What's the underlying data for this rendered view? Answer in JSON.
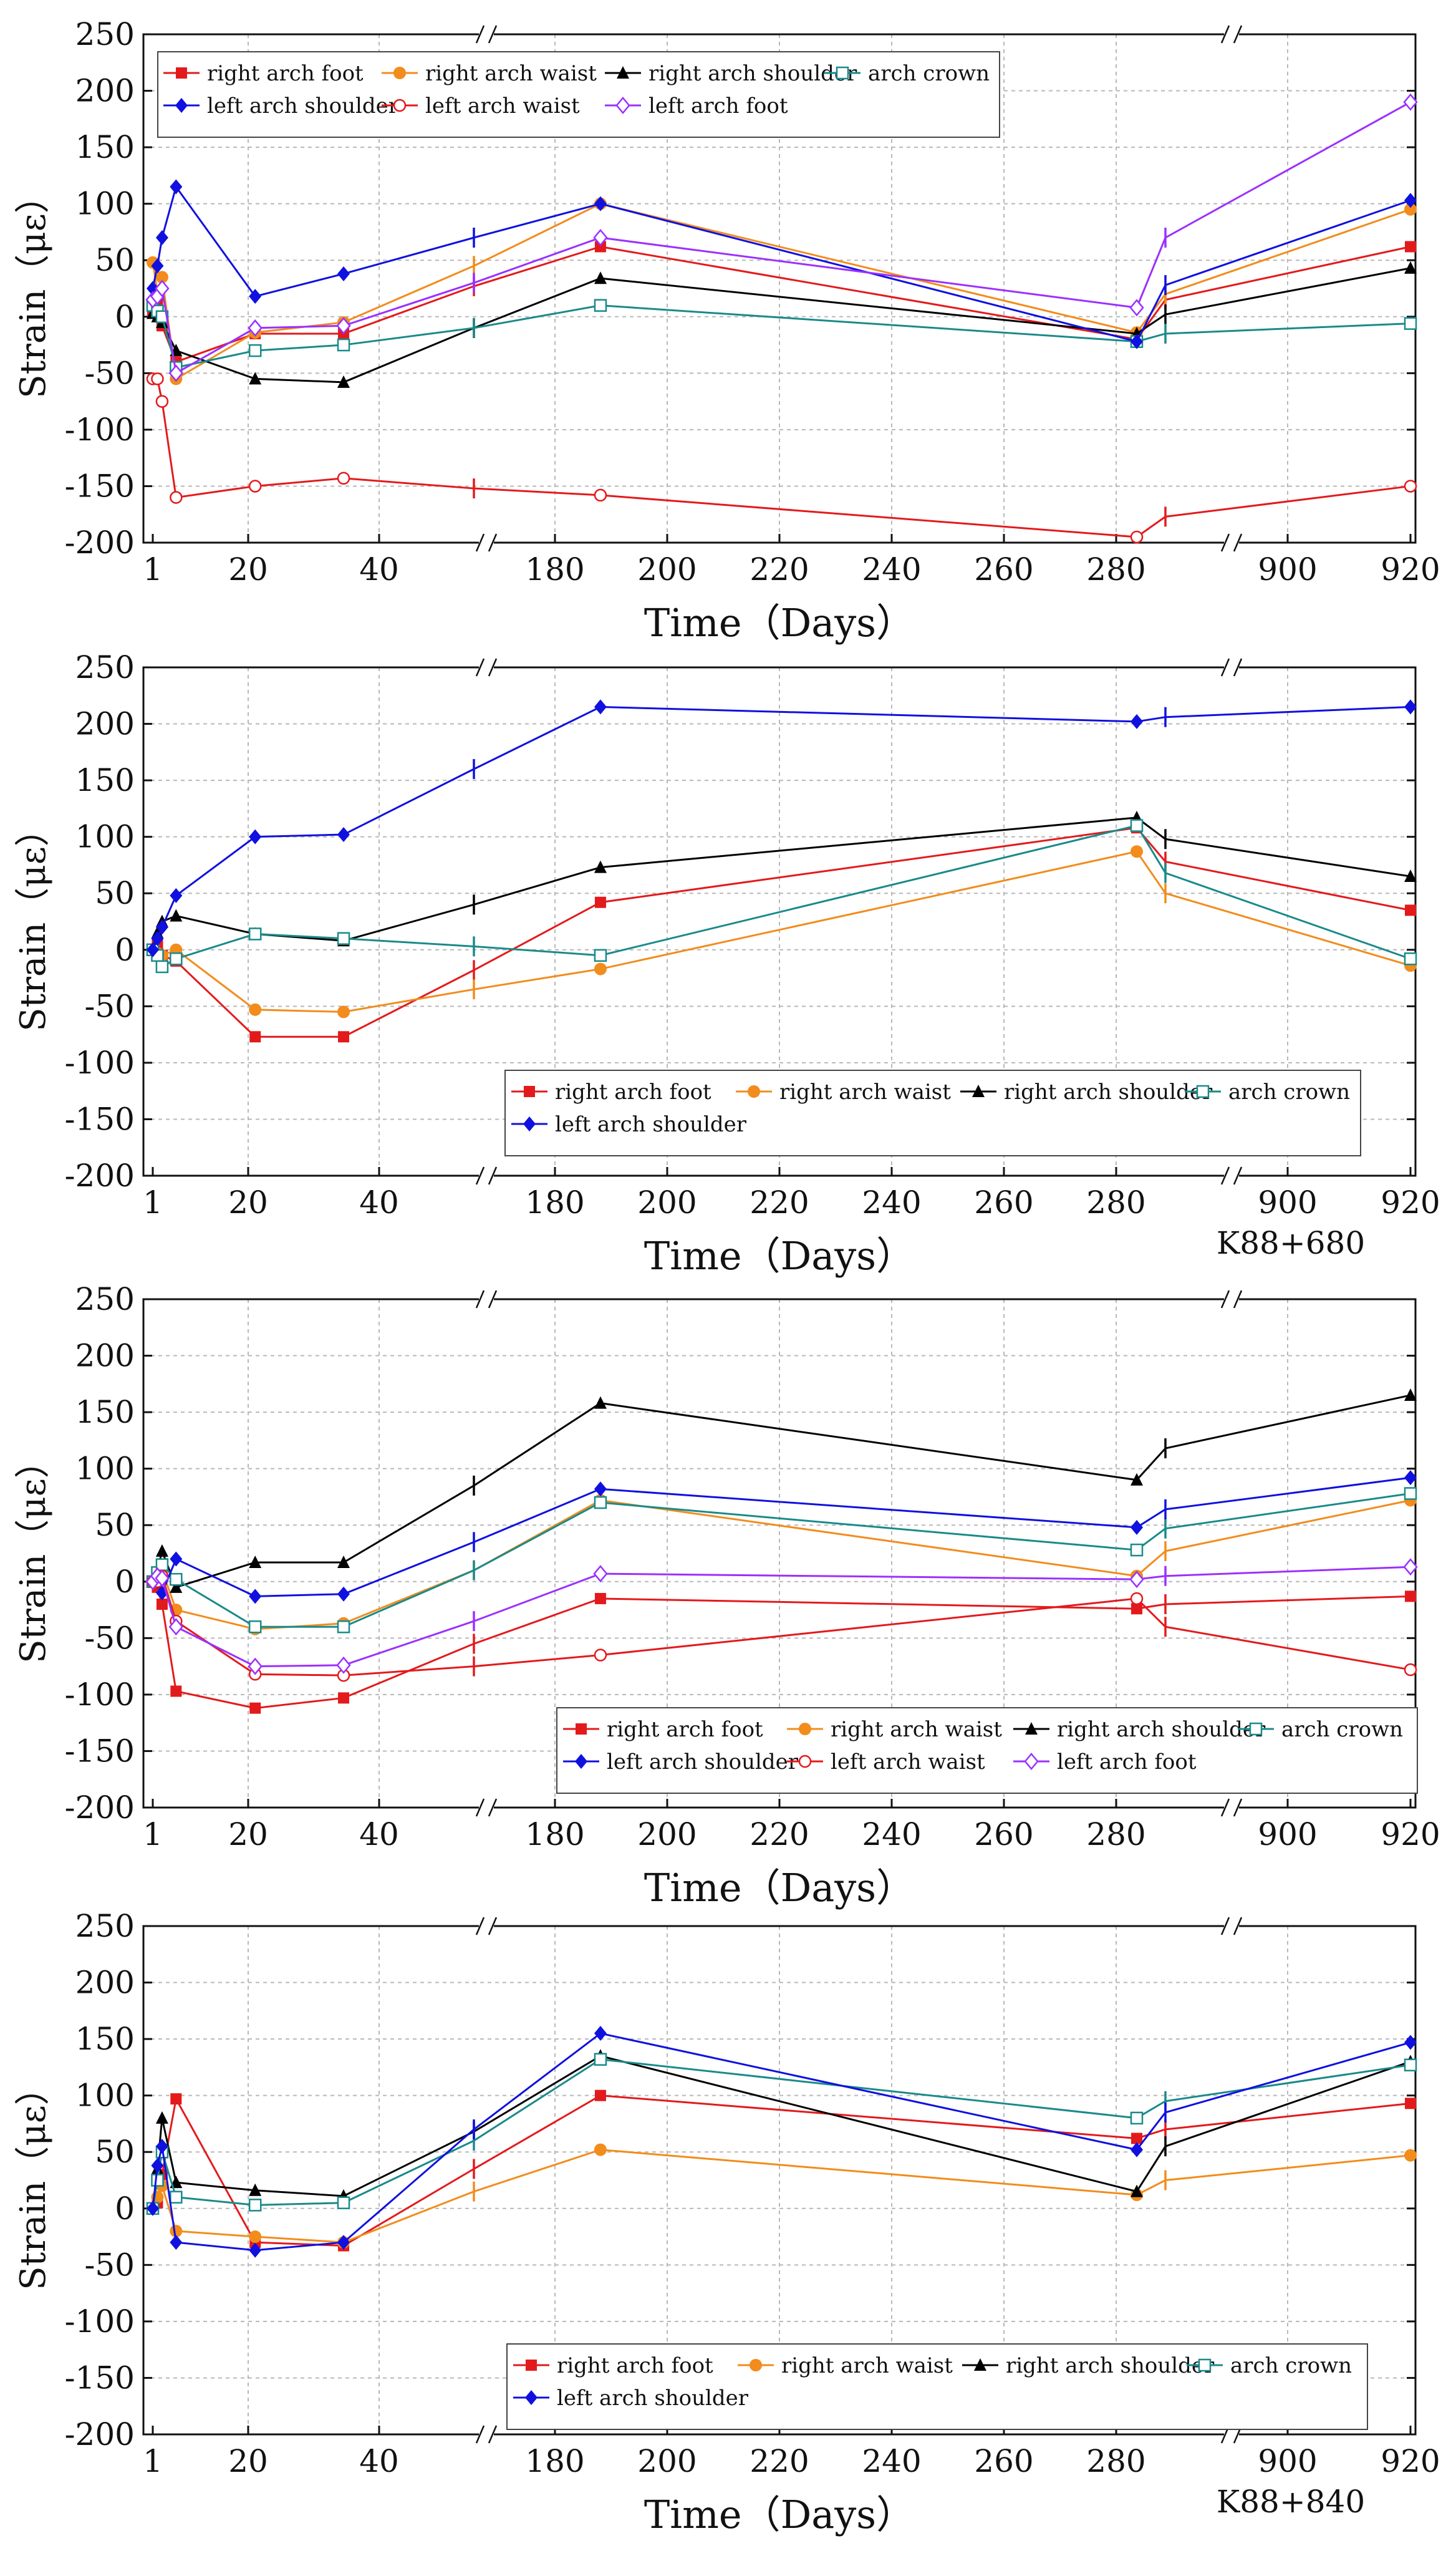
{
  "figure": {
    "series_styles": {
      "right arch foot": {
        "color": "#e31a1c",
        "marker": "square-filled"
      },
      "right arch waist": {
        "color": "#f28c1c",
        "marker": "circle-filled"
      },
      "right arch shoulder": {
        "color": "#000000",
        "marker": "triangle-filled"
      },
      "arch crown": {
        "color": "#1a8a8a",
        "marker": "square-open"
      },
      "left arch shoulder": {
        "color": "#1010e0",
        "marker": "diamond-filled"
      },
      "left arch waist": {
        "color": "#e31a1c",
        "marker": "circle-open"
      },
      "left arch foot": {
        "color": "#9b30ff",
        "marker": "diamond-open"
      }
    }
  },
  "chart_data": [
    {
      "type": "line",
      "title": "",
      "caption": "",
      "xlabel": "Time（Days）",
      "ylabel": "Strain（με）",
      "ylim": [
        -200,
        250
      ],
      "yticks": [
        250,
        200,
        150,
        100,
        50,
        0,
        -50,
        -100,
        -150,
        -200
      ],
      "xtick_labels": [
        "1",
        "20",
        "40",
        "180",
        "200",
        "220",
        "240",
        "260",
        "280",
        "900",
        "920"
      ],
      "x_points": [
        1,
        2,
        3,
        6,
        23,
        42,
        70,
        188,
        283,
        890,
        920
      ],
      "legend_position": "top-left",
      "series": [
        {
          "name": "right arch foot",
          "values": [
            5,
            12,
            -8,
            -40,
            -15,
            -15,
            27,
            62,
            -20,
            15,
            62
          ]
        },
        {
          "name": "right arch waist",
          "values": [
            48,
            22,
            35,
            -55,
            -14,
            -5,
            45,
            100,
            -14,
            20,
            95
          ]
        },
        {
          "name": "right arch shoulder",
          "values": [
            3,
            0,
            -5,
            -30,
            -55,
            -58,
            -10,
            34,
            -15,
            2,
            43
          ]
        },
        {
          "name": "arch crown",
          "values": [
            10,
            5,
            0,
            -45,
            -30,
            -25,
            -10,
            10,
            -22,
            -15,
            -6
          ]
        },
        {
          "name": "left arch shoulder",
          "values": [
            25,
            45,
            70,
            115,
            18,
            38,
            70,
            100,
            -22,
            28,
            103
          ]
        },
        {
          "name": "left arch waist",
          "values": [
            -55,
            -55,
            -75,
            -160,
            -150,
            -143,
            -152,
            -158,
            -195,
            -177,
            -150
          ]
        },
        {
          "name": "left arch foot",
          "values": [
            15,
            18,
            25,
            -50,
            -10,
            -8,
            30,
            70,
            8,
            70,
            190
          ]
        }
      ]
    },
    {
      "type": "line",
      "title": "",
      "caption": "K88+680",
      "xlabel": "Time（Days）",
      "ylabel": "Strain（με）",
      "ylim": [
        -200,
        250
      ],
      "yticks": [
        250,
        200,
        150,
        100,
        50,
        0,
        -50,
        -100,
        -150,
        -200
      ],
      "xtick_labels": [
        "1",
        "20",
        "40",
        "180",
        "200",
        "220",
        "240",
        "260",
        "280",
        "900",
        "920"
      ],
      "x_points": [
        1,
        2,
        3,
        6,
        23,
        42,
        70,
        188,
        283,
        890,
        920
      ],
      "legend_position": "bottom-right",
      "series": [
        {
          "name": "right arch foot",
          "values": [
            0,
            5,
            -5,
            -10,
            -77,
            -77,
            -18,
            42,
            108,
            78,
            35
          ]
        },
        {
          "name": "right arch waist",
          "values": [
            0,
            -3,
            -5,
            0,
            -53,
            -55,
            -35,
            -17,
            87,
            50,
            -14
          ]
        },
        {
          "name": "right arch shoulder",
          "values": [
            0,
            15,
            25,
            30,
            14,
            8,
            40,
            73,
            117,
            98,
            65
          ]
        },
        {
          "name": "arch crown",
          "values": [
            0,
            -5,
            -15,
            -8,
            14,
            10,
            3,
            -5,
            110,
            68,
            -8
          ]
        },
        {
          "name": "left arch shoulder",
          "values": [
            0,
            10,
            20,
            48,
            100,
            102,
            160,
            215,
            202,
            206,
            215
          ]
        }
      ]
    },
    {
      "type": "line",
      "title": "",
      "caption": "",
      "xlabel": "Time（Days）",
      "ylabel": "Strain（με）",
      "ylim": [
        -200,
        250
      ],
      "yticks": [
        250,
        200,
        150,
        100,
        50,
        0,
        -50,
        -100,
        -150,
        -200
      ],
      "xtick_labels": [
        "1",
        "20",
        "40",
        "180",
        "200",
        "220",
        "240",
        "260",
        "280",
        "900",
        "920"
      ],
      "x_points": [
        1,
        2,
        3,
        6,
        23,
        42,
        70,
        188,
        283,
        890,
        920
      ],
      "legend_position": "bottom-right",
      "series": [
        {
          "name": "right arch foot",
          "values": [
            0,
            -5,
            -20,
            -97,
            -112,
            -103,
            -55,
            -15,
            -24,
            -20,
            -13
          ]
        },
        {
          "name": "right arch waist",
          "values": [
            0,
            5,
            10,
            -25,
            -42,
            -37,
            10,
            72,
            5,
            27,
            72
          ]
        },
        {
          "name": "right arch shoulder",
          "values": [
            0,
            10,
            27,
            -5,
            17,
            17,
            85,
            158,
            90,
            118,
            165
          ]
        },
        {
          "name": "arch crown",
          "values": [
            0,
            8,
            15,
            2,
            -40,
            -40,
            10,
            70,
            28,
            47,
            78
          ]
        },
        {
          "name": "left arch shoulder",
          "values": [
            0,
            0,
            -10,
            20,
            -13,
            -11,
            35,
            82,
            48,
            64,
            92
          ]
        },
        {
          "name": "left arch waist",
          "values": [
            0,
            0,
            5,
            -35,
            -82,
            -83,
            -75,
            -65,
            -15,
            -40,
            -78
          ]
        },
        {
          "name": "left arch foot",
          "values": [
            0,
            5,
            3,
            -40,
            -75,
            -74,
            -35,
            7,
            2,
            5,
            13
          ]
        }
      ]
    },
    {
      "type": "line",
      "title": "",
      "caption": "K88+840",
      "xlabel": "Time（Days）",
      "ylabel": "Strain（με）",
      "ylim": [
        -200,
        250
      ],
      "yticks": [
        250,
        200,
        150,
        100,
        50,
        0,
        -50,
        -100,
        -150,
        -200
      ],
      "xtick_labels": [
        "1",
        "20",
        "40",
        "180",
        "200",
        "220",
        "240",
        "260",
        "280",
        "900",
        "920"
      ],
      "x_points": [
        1,
        2,
        3,
        6,
        23,
        42,
        70,
        188,
        283,
        890,
        920
      ],
      "legend_position": "bottom-right",
      "series": [
        {
          "name": "right arch foot",
          "values": [
            0,
            5,
            30,
            97,
            -30,
            -33,
            35,
            100,
            62,
            70,
            93
          ]
        },
        {
          "name": "right arch waist",
          "values": [
            0,
            10,
            20,
            -20,
            -25,
            -30,
            15,
            52,
            12,
            25,
            47
          ]
        },
        {
          "name": "right arch shoulder",
          "values": [
            0,
            35,
            80,
            23,
            16,
            11,
            68,
            135,
            15,
            55,
            130
          ]
        },
        {
          "name": "arch crown",
          "values": [
            0,
            25,
            50,
            10,
            3,
            5,
            60,
            132,
            80,
            95,
            127
          ]
        },
        {
          "name": "left arch shoulder",
          "values": [
            0,
            38,
            55,
            -30,
            -37,
            -30,
            70,
            155,
            52,
            85,
            147
          ]
        }
      ]
    }
  ]
}
